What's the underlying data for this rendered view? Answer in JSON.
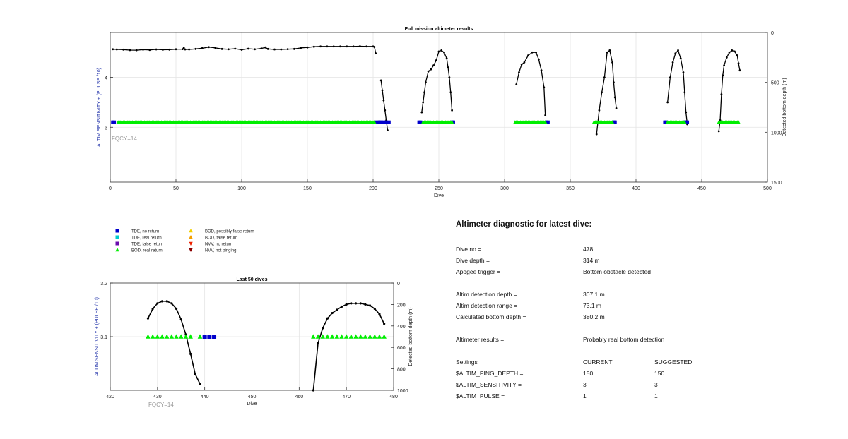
{
  "chart_data": [
    {
      "type": "scatter",
      "title": "Full mission altimeter results",
      "xlabel": "Dive",
      "ylabel_left": "ALTIM SENSITIVITY + (PULSE /10)",
      "ylabel_right": "Detected bottom depth (m)",
      "xlim": [
        0,
        500
      ],
      "xticks": [
        0,
        50,
        100,
        150,
        200,
        250,
        300,
        350,
        400,
        450,
        500
      ],
      "ylim_left": [
        1.9,
        4.9
      ],
      "ylim_right_reversed": [
        0,
        1500
      ],
      "yticks_left": [
        3,
        4
      ],
      "yticks_right": [
        0,
        500,
        1000,
        1500
      ],
      "grid": true,
      "annotation": "FQCY=14",
      "bottom_depth_segments": [
        {
          "x": [
            2,
            5,
            10,
            15,
            20,
            25,
            30,
            35,
            40,
            45,
            50,
            55,
            56,
            57,
            60,
            65,
            70,
            75,
            80,
            85,
            90,
            95,
            100,
            105,
            110,
            115,
            118,
            120,
            125,
            130,
            135,
            140,
            145,
            150,
            155,
            160,
            165,
            170,
            175,
            180,
            185,
            190,
            195,
            200,
            201,
            202
          ],
          "y": [
            168,
            170,
            172,
            177,
            178,
            172,
            175,
            170,
            173,
            172,
            168,
            167,
            155,
            170,
            170,
            165,
            158,
            147,
            155,
            165,
            168,
            163,
            173,
            163,
            168,
            160,
            150,
            165,
            170,
            170,
            167,
            165,
            155,
            150,
            143,
            140,
            140,
            140,
            140,
            140,
            140,
            138,
            140,
            140,
            145,
            210
          ]
        },
        {
          "x": [
            206,
            207,
            208,
            209,
            210,
            211
          ],
          "y": [
            480,
            580,
            680,
            780,
            880,
            980
          ]
        },
        {
          "x": [
            237,
            238,
            239,
            240,
            242,
            244,
            246,
            248,
            250,
            252,
            254,
            256,
            257,
            258,
            259,
            260
          ],
          "y": [
            800,
            700,
            600,
            500,
            390,
            370,
            330,
            280,
            190,
            180,
            200,
            260,
            350,
            450,
            600,
            780
          ]
        },
        {
          "x": [
            309,
            311,
            313,
            315,
            318,
            321,
            324,
            326,
            328,
            330,
            331
          ],
          "y": [
            520,
            400,
            320,
            300,
            230,
            200,
            200,
            270,
            380,
            550,
            830
          ]
        },
        {
          "x": [
            370,
            371,
            372,
            374,
            376,
            378,
            380,
            382,
            383,
            384,
            385
          ],
          "y": [
            1020,
            900,
            780,
            600,
            450,
            200,
            180,
            300,
            500,
            650,
            760
          ]
        },
        {
          "x": [
            424,
            426,
            428,
            430,
            432,
            434,
            436,
            437,
            438,
            439
          ],
          "y": [
            700,
            450,
            300,
            210,
            180,
            260,
            400,
            600,
            800,
            920
          ]
        },
        {
          "x": [
            463,
            464,
            465,
            466,
            467,
            469,
            471,
            473,
            475,
            477,
            478,
            479
          ],
          "y": [
            990,
            880,
            620,
            430,
            330,
            250,
            200,
            180,
            190,
            230,
            310,
            380
          ]
        }
      ],
      "series": [
        {
          "name": "TDE, no return",
          "color": "#0000cc",
          "marker": "square",
          "x": [
            2,
            3,
            202,
            204,
            205,
            206,
            208,
            210,
            212,
            235,
            236,
            260,
            261,
            332,
            333,
            383,
            384,
            422,
            423,
            437,
            438,
            439
          ],
          "y": [
            3.1,
            3.1,
            3.1,
            3.1,
            3.1,
            3.1,
            3.1,
            3.1,
            3.1,
            3.1,
            3.1,
            3.1,
            3.1,
            3.1,
            3.1,
            3.1,
            3.1,
            3.1,
            3.1,
            3.1,
            3.1,
            3.1
          ]
        },
        {
          "name": "BOD, real return",
          "color": "#00ee00",
          "marker": "triangle",
          "ranges": [
            [
              6,
              201
            ],
            [
              238,
              260
            ],
            [
              308,
              331
            ],
            [
              368,
              382
            ],
            [
              424,
              437
            ],
            [
              463,
              478
            ]
          ],
          "y": 3.1
        }
      ]
    },
    {
      "type": "scatter",
      "title": "Last 50 dives",
      "xlabel": "Dive",
      "ylabel_left": "ALTIM SENSITIVITY + (PULSE /10)",
      "ylabel_right": "Detected bottom depth (m)",
      "xlim": [
        420,
        480
      ],
      "xticks": [
        420,
        430,
        440,
        450,
        460,
        470,
        480
      ],
      "ylim_left": [
        3.0,
        3.2
      ],
      "ylim_right_reversed": [
        0,
        1000
      ],
      "yticks_left": [
        3.1,
        3.2
      ],
      "yticks_right": [
        0,
        200,
        400,
        600,
        800,
        1000
      ],
      "grid": true,
      "annotation": "FQCY=14",
      "bottom_depth_segments": [
        {
          "x": [
            428,
            429,
            430,
            431,
            432,
            433,
            434,
            435,
            436,
            437,
            438,
            439
          ],
          "y": [
            330,
            240,
            190,
            170,
            170,
            190,
            240,
            340,
            480,
            660,
            850,
            940
          ]
        },
        {
          "x": [
            463,
            464,
            465,
            466,
            467,
            468,
            469,
            470,
            471,
            472,
            473,
            474,
            475,
            476,
            477,
            478
          ],
          "y": [
            1000,
            560,
            420,
            330,
            280,
            250,
            220,
            200,
            190,
            190,
            190,
            200,
            210,
            240,
            290,
            380
          ]
        }
      ],
      "series": [
        {
          "name": "BOD, real return",
          "color": "#00ee00",
          "marker": "triangle",
          "x": [
            428,
            429,
            430,
            431,
            432,
            433,
            434,
            435,
            436,
            437,
            439,
            463,
            464,
            465,
            466,
            467,
            468,
            469,
            470,
            471,
            472,
            473,
            474,
            475,
            476,
            477,
            478
          ],
          "y": [
            3.1,
            3.1,
            3.1,
            3.1,
            3.1,
            3.1,
            3.1,
            3.1,
            3.1,
            3.1,
            3.1,
            3.1,
            3.1,
            3.1,
            3.1,
            3.1,
            3.1,
            3.1,
            3.1,
            3.1,
            3.1,
            3.1,
            3.1,
            3.1,
            3.1,
            3.1,
            3.1
          ]
        },
        {
          "name": "TDE, no return",
          "color": "#0000cc",
          "marker": "square",
          "x": [
            440,
            441,
            442
          ],
          "y": [
            3.1,
            3.1,
            3.1
          ]
        }
      ]
    }
  ],
  "legend": {
    "entries": [
      {
        "label": "TDE, no return",
        "color": "#0000cc",
        "marker": "square"
      },
      {
        "label": "TDE, real return",
        "color": "#00cccc",
        "marker": "square"
      },
      {
        "label": "TDE, false return",
        "color": "#6a0dad",
        "marker": "square"
      },
      {
        "label": "BOD, real return",
        "color": "#00ee00",
        "marker": "triangle"
      },
      {
        "label": "BOD, possibly false return",
        "color": "#f2d000",
        "marker": "triangle"
      },
      {
        "label": "BOD, false return",
        "color": "#f5a000",
        "marker": "triangle"
      },
      {
        "label": "NVV, no return",
        "color": "#ee2200",
        "marker": "triangle-down"
      },
      {
        "label": "NVV, not pinging",
        "color": "#8b0000",
        "marker": "triangle-down"
      }
    ]
  },
  "diagnostic": {
    "title": "Altimeter diagnostic for latest dive:",
    "dive_no_label": "Dive no =",
    "dive_no_value": "478",
    "dive_depth_label": "Dive depth =",
    "dive_depth_value": "314 m",
    "apogee_label": "Apogee trigger =",
    "apogee_value": "Bottom obstacle detected",
    "det_depth_label": "Altim detection depth =",
    "det_depth_value": "307.1 m",
    "det_range_label": "Altim detection range =",
    "det_range_value": "73.1 m",
    "calc_depth_label": "Calculated bottom depth =",
    "calc_depth_value": "380.2 m",
    "results_label": "Altimeter results =",
    "results_value": "Probably real bottom detection",
    "settings_label": "Settings",
    "current_label": "CURRENT",
    "suggested_label": "SUGGESTED",
    "ping_label": "$ALTIM_PING_DEPTH =",
    "ping_current": "150",
    "ping_suggested": "150",
    "sens_label": "$ALTIM_SENSITIVITY =",
    "sens_current": "3",
    "sens_suggested": "3",
    "pulse_label": "$ALTIM_PULSE =",
    "pulse_current": "1",
    "pulse_suggested": "1"
  }
}
